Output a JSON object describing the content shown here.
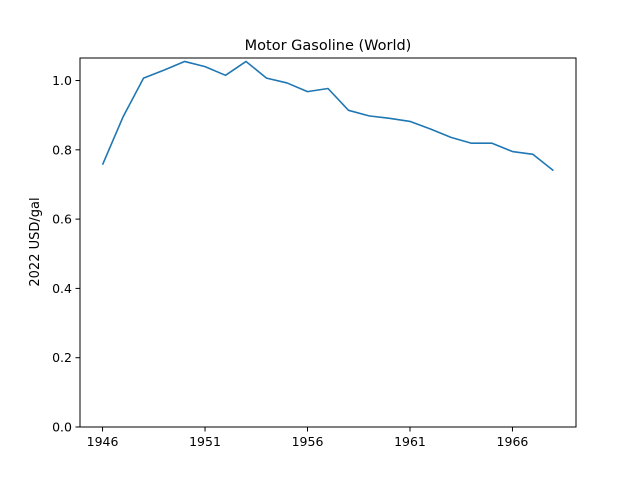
{
  "chart_data": {
    "type": "line",
    "title": "Motor Gasoline (World)",
    "xlabel": "",
    "ylabel": "2022 USD/gal",
    "xlim": [
      1944.9,
      1969.1
    ],
    "ylim": [
      0,
      1.065
    ],
    "xticks": [
      1946,
      1951,
      1956,
      1961,
      1966
    ],
    "yticks": [
      0.0,
      0.2,
      0.4,
      0.6,
      0.8,
      1.0
    ],
    "ytick_labels": [
      "0.0",
      "0.2",
      "0.4",
      "0.6",
      "0.8",
      "1.0"
    ],
    "grid": false,
    "series": [
      {
        "color": "#1f77b4",
        "x": [
          1946,
          1947,
          1948,
          1949,
          1950,
          1951,
          1952,
          1953,
          1954,
          1955,
          1956,
          1957,
          1958,
          1959,
          1960,
          1961,
          1962,
          1963,
          1964,
          1965,
          1966,
          1967,
          1968
        ],
        "y": [
          0.757,
          0.895,
          1.007,
          1.03,
          1.055,
          1.04,
          1.015,
          1.055,
          1.007,
          0.993,
          0.968,
          0.977,
          0.914,
          0.898,
          0.891,
          0.882,
          0.86,
          0.836,
          0.819,
          0.819,
          0.795,
          0.787,
          0.74
        ]
      }
    ]
  }
}
